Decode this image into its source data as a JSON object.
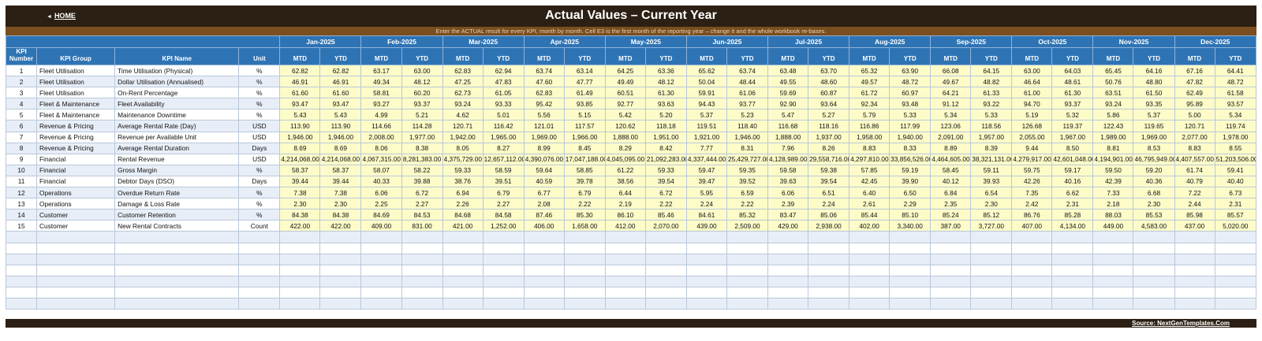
{
  "header": {
    "home_label": "HOME",
    "title": "Actual Values  –  Current Year",
    "subtitle": "Enter the ACTUAL result for every KPI, month by month. Cell E3 is the first month of the reporting year – change it and the whole workbook re-bases."
  },
  "table": {
    "columns": {
      "kpi_number": "KPI Number",
      "kpi_group": "KPI Group",
      "kpi_name": "KPI Name",
      "unit": "Unit",
      "mtd": "MTD",
      "ytd": "YTD"
    },
    "months": [
      "Jan-2025",
      "Feb-2025",
      "Mar-2025",
      "Apr-2025",
      "May-2025",
      "Jun-2025",
      "Jul-2025",
      "Aug-2025",
      "Sep-2025",
      "Oct-2025",
      "Nov-2025",
      "Dec-2025"
    ],
    "empty_rows": 7,
    "rows": [
      {
        "num": "1",
        "group": "Fleet Utilisation",
        "name": "Time Utilisation (Physical)",
        "unit": "%",
        "values": [
          "62.82",
          "62.82",
          "63.17",
          "63.00",
          "62.83",
          "62.94",
          "63.74",
          "63.14",
          "64.25",
          "63.36",
          "65.62",
          "63.74",
          "63.48",
          "63.70",
          "65.32",
          "63.90",
          "66.08",
          "64.15",
          "63.00",
          "64.03",
          "65.45",
          "64.16",
          "67.16",
          "64.41"
        ]
      },
      {
        "num": "2",
        "group": "Fleet Utilisation",
        "name": "Dollar Utilisation (Annualised)",
        "unit": "%",
        "values": [
          "46.91",
          "46.91",
          "49.34",
          "48.12",
          "47.25",
          "47.83",
          "47.60",
          "47.77",
          "49.49",
          "48.12",
          "50.04",
          "48.44",
          "49.55",
          "48.60",
          "49.57",
          "48.72",
          "49.67",
          "48.82",
          "46.64",
          "48.61",
          "50.76",
          "48.80",
          "47.82",
          "48.72"
        ]
      },
      {
        "num": "3",
        "group": "Fleet Utilisation",
        "name": "On-Rent Percentage",
        "unit": "%",
        "values": [
          "61.60",
          "61.60",
          "58.81",
          "60.20",
          "62.73",
          "61.05",
          "62.83",
          "61.49",
          "60.51",
          "61.30",
          "59.91",
          "61.06",
          "59.69",
          "60.87",
          "61.72",
          "60.97",
          "64.21",
          "61.33",
          "61.00",
          "61.30",
          "63.51",
          "61.50",
          "62.49",
          "61.58"
        ]
      },
      {
        "num": "4",
        "group": "Fleet & Maintenance",
        "name": "Fleet Availability",
        "unit": "%",
        "values": [
          "93.47",
          "93.47",
          "93.27",
          "93.37",
          "93.24",
          "93.33",
          "95.42",
          "93.85",
          "92.77",
          "93.63",
          "94.43",
          "93.77",
          "92.90",
          "93.64",
          "92.34",
          "93.48",
          "91.12",
          "93.22",
          "94.70",
          "93.37",
          "93.24",
          "93.35",
          "95.89",
          "93.57"
        ]
      },
      {
        "num": "5",
        "group": "Fleet & Maintenance",
        "name": "Maintenance Downtime",
        "unit": "%",
        "values": [
          "5.43",
          "5.43",
          "4.99",
          "5.21",
          "4.62",
          "5.01",
          "5.56",
          "5.15",
          "5.42",
          "5.20",
          "5.37",
          "5.23",
          "5.47",
          "5.27",
          "5.79",
          "5.33",
          "5.34",
          "5.33",
          "5.19",
          "5.32",
          "5.86",
          "5.37",
          "5.00",
          "5.34"
        ]
      },
      {
        "num": "6",
        "group": "Revenue & Pricing",
        "name": "Average Rental Rate (Day)",
        "unit": "USD",
        "values": [
          "113.90",
          "113.90",
          "114.66",
          "114.28",
          "120.71",
          "116.42",
          "121.01",
          "117.57",
          "120.62",
          "118.18",
          "119.51",
          "118.40",
          "116.68",
          "118.16",
          "116.86",
          "117.99",
          "123.06",
          "118.56",
          "126.68",
          "119.37",
          "122.43",
          "119.65",
          "120.71",
          "119.74"
        ]
      },
      {
        "num": "7",
        "group": "Revenue & Pricing",
        "name": "Revenue per Available Unit",
        "unit": "USD",
        "values": [
          "1,946.00",
          "1,946.00",
          "2,008.00",
          "1,977.00",
          "1,942.00",
          "1,965.00",
          "1,969.00",
          "1,966.00",
          "1,888.00",
          "1,951.00",
          "1,921.00",
          "1,946.00",
          "1,888.00",
          "1,937.00",
          "1,958.00",
          "1,940.00",
          "2,091.00",
          "1,957.00",
          "2,055.00",
          "1,967.00",
          "1,989.00",
          "1,969.00",
          "2,077.00",
          "1,978.00"
        ]
      },
      {
        "num": "8",
        "group": "Revenue & Pricing",
        "name": "Average Rental Duration",
        "unit": "Days",
        "values": [
          "8.69",
          "8.69",
          "8.06",
          "8.38",
          "8.05",
          "8.27",
          "8.99",
          "8.45",
          "8.29",
          "8.42",
          "7.77",
          "8.31",
          "7.96",
          "8.26",
          "8.83",
          "8.33",
          "8.89",
          "8.39",
          "9.44",
          "8.50",
          "8.81",
          "8.53",
          "8.83",
          "8.55"
        ]
      },
      {
        "num": "9",
        "group": "Financial",
        "name": "Rental Revenue",
        "unit": "USD",
        "values": [
          "4,214,068.00",
          "4,214,068.00",
          "4,067,315.00",
          "8,281,383.00",
          "4,375,729.00",
          "12,657,112.00",
          "4,390,076.00",
          "17,047,188.00",
          "4,045,095.00",
          "21,092,283.00",
          "4,337,444.00",
          "25,429,727.00",
          "4,128,989.00",
          "29,558,716.00",
          "4,297,810.00",
          "33,856,526.00",
          "4,464,605.00",
          "38,321,131.00",
          "4,279,917.00",
          "42,601,048.00",
          "4,194,901.00",
          "46,795,949.00",
          "4,407,557.00",
          "51,203,506.00"
        ]
      },
      {
        "num": "10",
        "group": "Financial",
        "name": "Gross Margin",
        "unit": "%",
        "values": [
          "58.37",
          "58.37",
          "58.07",
          "58.22",
          "59.33",
          "58.59",
          "59.64",
          "58.85",
          "61.22",
          "59.33",
          "59.47",
          "59.35",
          "59.58",
          "59.38",
          "57.85",
          "59.19",
          "58.45",
          "59.11",
          "59.75",
          "59.17",
          "59.50",
          "59.20",
          "61.74",
          "59.41"
        ]
      },
      {
        "num": "11",
        "group": "Financial",
        "name": "Debtor Days (DSO)",
        "unit": "Days",
        "values": [
          "39.44",
          "39.44",
          "40.33",
          "39.88",
          "38.76",
          "39.51",
          "40.59",
          "39.78",
          "38.56",
          "39.54",
          "39.47",
          "39.52",
          "39.63",
          "39.54",
          "42.45",
          "39.90",
          "40.12",
          "39.93",
          "42.26",
          "40.16",
          "42.39",
          "40.36",
          "40.79",
          "40.40"
        ]
      },
      {
        "num": "12",
        "group": "Operations",
        "name": "Overdue Return Rate",
        "unit": "%",
        "values": [
          "7.38",
          "7.38",
          "6.06",
          "6.72",
          "6.94",
          "6.79",
          "6.77",
          "6.79",
          "6.44",
          "6.72",
          "5.95",
          "6.59",
          "6.06",
          "6.51",
          "6.40",
          "6.50",
          "6.84",
          "6.54",
          "7.35",
          "6.62",
          "7.33",
          "6.68",
          "7.22",
          "6.73"
        ]
      },
      {
        "num": "13",
        "group": "Operations",
        "name": "Damage & Loss Rate",
        "unit": "%",
        "values": [
          "2.30",
          "2.30",
          "2.25",
          "2.27",
          "2.26",
          "2.27",
          "2.08",
          "2.22",
          "2.19",
          "2.22",
          "2.24",
          "2.22",
          "2.39",
          "2.24",
          "2.61",
          "2.29",
          "2.35",
          "2.30",
          "2.42",
          "2.31",
          "2.18",
          "2.30",
          "2.44",
          "2.31"
        ]
      },
      {
        "num": "14",
        "group": "Customer",
        "name": "Customer Retention",
        "unit": "%",
        "values": [
          "84.38",
          "84.38",
          "84.69",
          "84.53",
          "84.68",
          "84.58",
          "87.46",
          "85.30",
          "86.10",
          "85.46",
          "84.61",
          "85.32",
          "83.47",
          "85.06",
          "85.44",
          "85.10",
          "85.24",
          "85.12",
          "86.76",
          "85.28",
          "88.03",
          "85.53",
          "85.98",
          "85.57"
        ]
      },
      {
        "num": "15",
        "group": "Customer",
        "name": "New Rental Contracts",
        "unit": "Count",
        "values": [
          "422.00",
          "422.00",
          "409.00",
          "831.00",
          "421.00",
          "1,252.00",
          "406.00",
          "1,658.00",
          "412.00",
          "2,070.00",
          "439.00",
          "2,509.00",
          "429.00",
          "2,938.00",
          "402.00",
          "3,340.00",
          "387.00",
          "3,727.00",
          "407.00",
          "4,134.00",
          "449.00",
          "4,583.00",
          "437.00",
          "5,020.00"
        ]
      }
    ]
  },
  "footer": {
    "source_label": "Source: NextGenTemplates.Com"
  }
}
